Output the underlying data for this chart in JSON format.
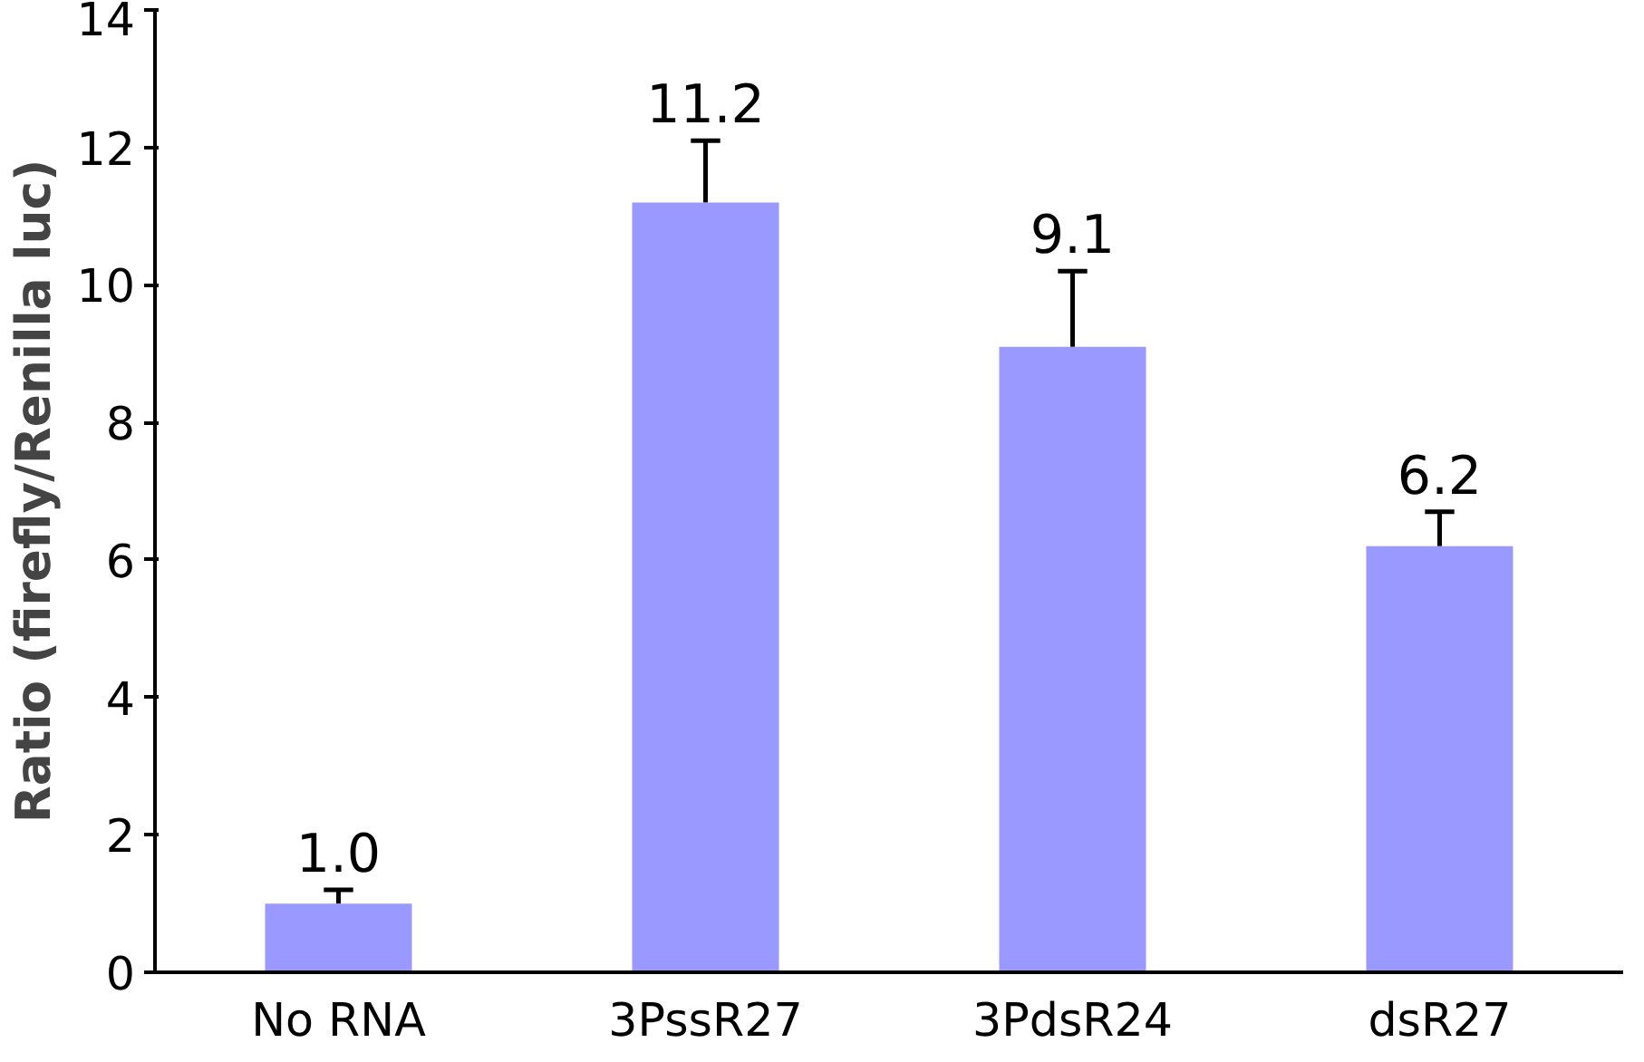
{
  "chart_data": {
    "type": "bar",
    "ylabel": "Ratio (firefly/Renilla luc)",
    "categories": [
      "No RNA",
      "3PssR27",
      "3PdsR24",
      "dsR27"
    ],
    "values": [
      1.0,
      11.2,
      9.1,
      6.2
    ],
    "errors": [
      [
        1.0,
        1.2
      ],
      [
        11.2,
        12.1
      ],
      [
        9.1,
        10.2
      ],
      [
        6.2,
        6.7
      ]
    ],
    "color": "#9999ff",
    "value_labels": [
      "1.0",
      "11.2",
      "9.1",
      "6.2"
    ],
    "grid": false,
    "ylim": [
      0,
      14
    ],
    "yticks": [
      0,
      2,
      4,
      6,
      8,
      10,
      12,
      14
    ]
  }
}
